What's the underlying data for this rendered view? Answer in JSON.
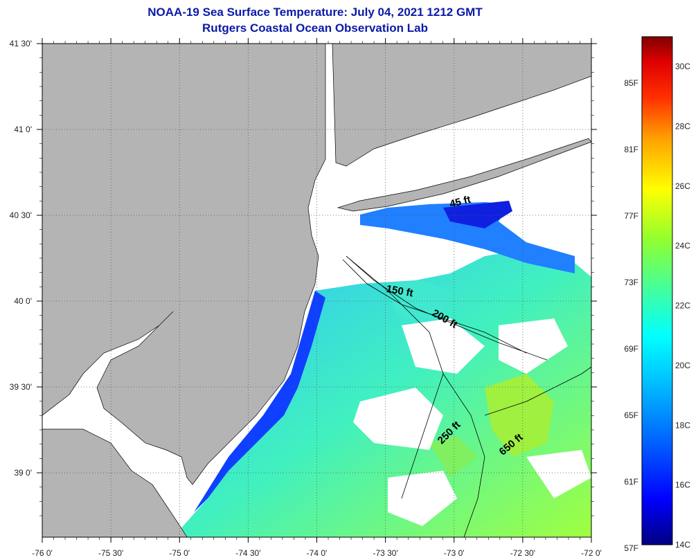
{
  "header": {
    "title": "NOAA-19 Sea Surface Temperature:  July 04, 2021 1212 GMT",
    "subtitle": "Rutgers Coastal Ocean Observation Lab"
  },
  "chart_data": {
    "type": "heatmap",
    "title": "NOAA-19 Sea Surface Temperature:  July 04, 2021 1212 GMT",
    "subtitle": "Rutgers Coastal Ocean Observation Lab",
    "xlim": [
      -76.0,
      -72.0
    ],
    "ylim": [
      38.625,
      41.5
    ],
    "x_ticks": [
      {
        "value": -76.0,
        "label": "-76 0'"
      },
      {
        "value": -75.5,
        "label": "-75 30'"
      },
      {
        "value": -75.0,
        "label": "-75 0'"
      },
      {
        "value": -74.5,
        "label": "-74 30'"
      },
      {
        "value": -74.0,
        "label": "-74 0'"
      },
      {
        "value": -73.5,
        "label": "-73 30'"
      },
      {
        "value": -73.0,
        "label": "-73 0'"
      },
      {
        "value": -72.5,
        "label": "-72 30'"
      },
      {
        "value": -72.0,
        "label": "-72 0'"
      }
    ],
    "y_ticks": [
      {
        "value": 41.5,
        "label": "41 30'"
      },
      {
        "value": 41.0,
        "label": "41 0'"
      },
      {
        "value": 40.5,
        "label": "40 30'"
      },
      {
        "value": 40.0,
        "label": "40 0'"
      },
      {
        "value": 39.5,
        "label": "39 30'"
      },
      {
        "value": 39.0,
        "label": "39 0'"
      }
    ],
    "grid": true,
    "colorbar": {
      "min_c": 14,
      "max_c": 31,
      "celsius_labels": [
        {
          "value": 30,
          "label": "30C"
        },
        {
          "value": 28,
          "label": "28C"
        },
        {
          "value": 26,
          "label": "26C"
        },
        {
          "value": 24,
          "label": "24C"
        },
        {
          "value": 22,
          "label": "22C"
        },
        {
          "value": 20,
          "label": "20C"
        },
        {
          "value": 18,
          "label": "18C"
        },
        {
          "value": 16,
          "label": "16C"
        },
        {
          "value": 14,
          "label": "14C"
        }
      ],
      "fahrenheit_labels": [
        {
          "value": 85,
          "label": "85F"
        },
        {
          "value": 81,
          "label": "81F"
        },
        {
          "value": 77,
          "label": "77F"
        },
        {
          "value": 73,
          "label": "73F"
        },
        {
          "value": 69,
          "label": "69F"
        },
        {
          "value": 65,
          "label": "65F"
        },
        {
          "value": 61,
          "label": "61F"
        },
        {
          "value": 57,
          "label": "57F"
        }
      ],
      "colors": [
        "#000080",
        "#0000ff",
        "#0060ff",
        "#00c0ff",
        "#00ffff",
        "#40ffa0",
        "#80ff40",
        "#ffff00",
        "#ffa000",
        "#ff4000",
        "#ff0000",
        "#900000"
      ]
    },
    "isobaths": [
      {
        "label": "45 ft",
        "lon": -72.95,
        "lat": 40.56,
        "angle": -14
      },
      {
        "label": "150 ft",
        "lon": -73.4,
        "lat": 40.04,
        "angle": 10
      },
      {
        "label": "200 ft",
        "lon": -73.08,
        "lat": 39.88,
        "angle": 30
      },
      {
        "label": "250 ft",
        "lon": -73.02,
        "lat": 39.22,
        "angle": -45
      },
      {
        "label": "650 ft",
        "lon": -72.57,
        "lat": 39.15,
        "angle": -40
      }
    ],
    "colors": {
      "land": "#b4b4b4",
      "no_data": "#ffffff",
      "title_text": "#0a1aa8"
    }
  }
}
